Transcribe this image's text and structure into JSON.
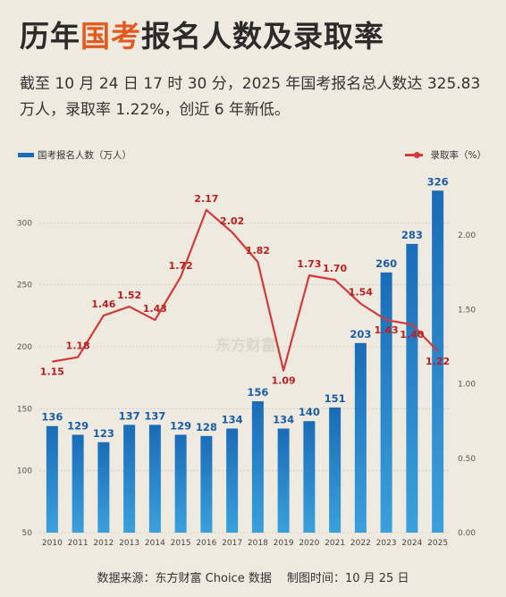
{
  "header": {
    "title_pre": "历年",
    "title_highlight": "国考",
    "title_post": "报名人数及录取率",
    "subtitle": "截至 10 月 24 日 17 时 30 分，2025 年国考报名总人数达 325.83 万人，录取率 1.22%，创近 6 年新低。"
  },
  "legend": {
    "bar_label": "国考报名人数（万人）",
    "line_label": "录取率（%）"
  },
  "watermark": "东方财富",
  "footer": {
    "text": "数据来源：东方财富 Choice 数据　 制图时间：10 月 25 日"
  },
  "colors": {
    "bar": "#1a6cb8",
    "bar_label": "#1a5ea8",
    "line": "#d23a3a",
    "line_label": "#b81f1f",
    "highlight": "#e35a1f"
  },
  "chart_data": {
    "type": "bar",
    "categories": [
      "2010",
      "2011",
      "2012",
      "2013",
      "2014",
      "2015",
      "2016",
      "2017",
      "2018",
      "2019",
      "2020",
      "2021",
      "2022",
      "2023",
      "2024",
      "2025"
    ],
    "series": [
      {
        "name": "国考报名人数（万人）",
        "type": "bar",
        "axis": "left",
        "values": [
          136,
          129,
          123,
          137,
          137,
          129,
          128,
          134,
          156,
          134,
          140,
          151,
          203,
          260,
          283,
          326
        ]
      },
      {
        "name": "录取率（%）",
        "type": "line",
        "axis": "right",
        "values": [
          1.15,
          1.18,
          1.46,
          1.52,
          1.43,
          1.72,
          2.17,
          2.02,
          1.82,
          1.09,
          1.73,
          1.7,
          1.54,
          1.43,
          1.4,
          1.22
        ]
      }
    ],
    "left_axis": {
      "min": 50,
      "max": 350,
      "ticks": [
        50,
        100,
        150,
        200,
        250,
        300
      ]
    },
    "right_axis": {
      "min": 0,
      "max": 2.5,
      "ticks": [
        "0.00",
        "0.50",
        "1.00",
        "1.50",
        "2.00"
      ]
    },
    "grid": true
  }
}
